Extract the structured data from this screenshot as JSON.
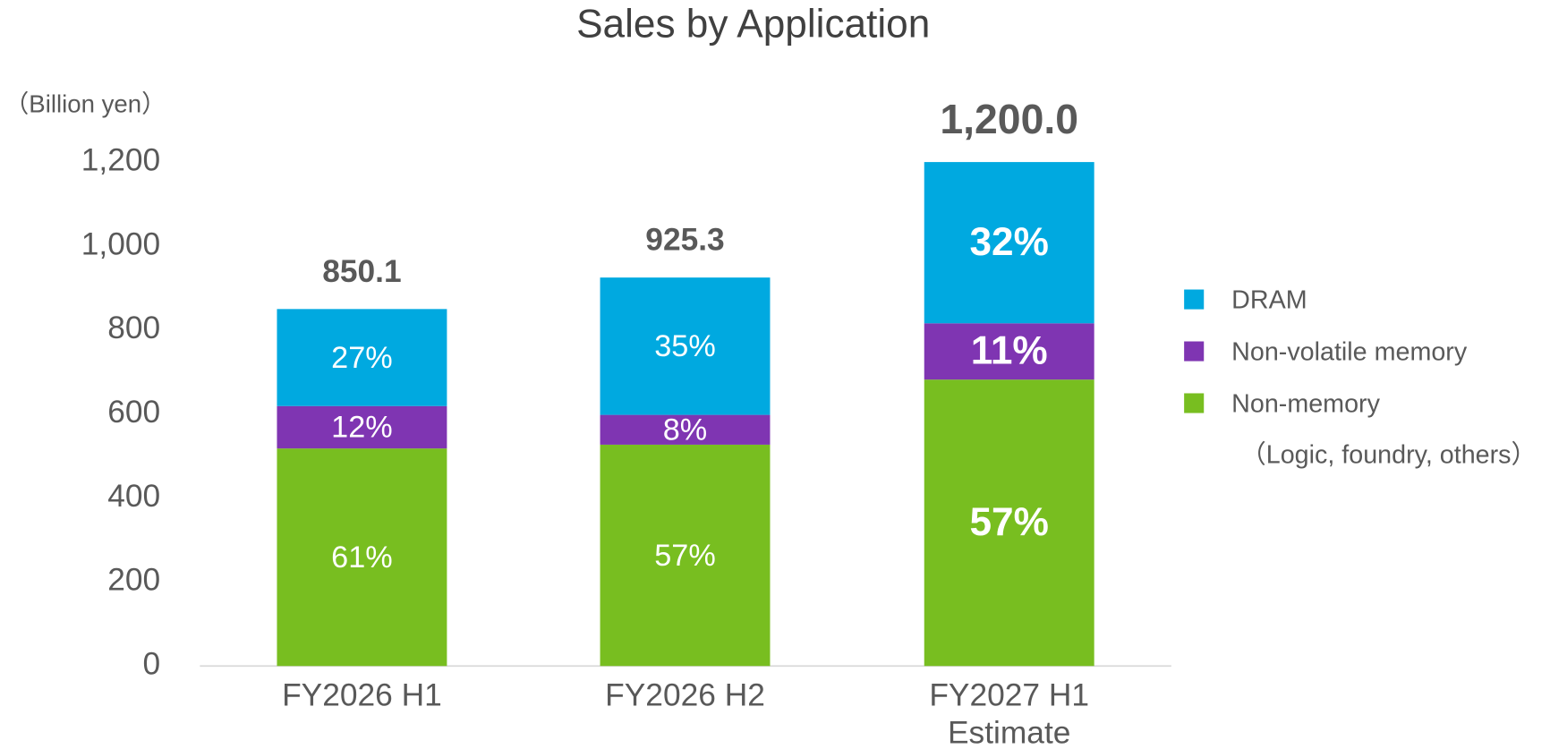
{
  "chart_data": {
    "type": "stacked_bar",
    "title": "Sales by Application",
    "y_label": "（Billion yen）",
    "categories": [
      "FY2026 H1",
      "FY2026 H2",
      "FY2027 H1\nEstimate"
    ],
    "series": [
      {
        "name": "Non-memory",
        "color": "#78be20",
        "values": [
          518,
          527,
          682
        ],
        "value_labels": [
          "61%",
          "57%",
          "57%"
        ]
      },
      {
        "name": "Non-volatile memory",
        "color": "#7f35b2",
        "values": [
          101,
          71,
          134
        ],
        "value_labels": [
          "12%",
          "8%",
          "11%"
        ]
      },
      {
        "name": "DRAM",
        "color": "#00a9e0",
        "values": [
          231,
          327,
          384
        ],
        "value_labels": [
          "27%",
          "35%",
          "32%"
        ]
      }
    ],
    "totals": [
      850.1,
      925.3,
      1200.0
    ],
    "total_labels": [
      "850.1",
      "925.3",
      "1,200.0"
    ],
    "legend_note": "（Logic, foundry, others）",
    "legend": "right",
    "ylim": [
      0,
      1200
    ],
    "yticks": [
      0,
      200,
      400,
      600,
      800,
      {
        "value": 1000,
        "label": "1,000"
      },
      {
        "value": 1200,
        "label": "1,200"
      }
    ],
    "grid": false
  }
}
